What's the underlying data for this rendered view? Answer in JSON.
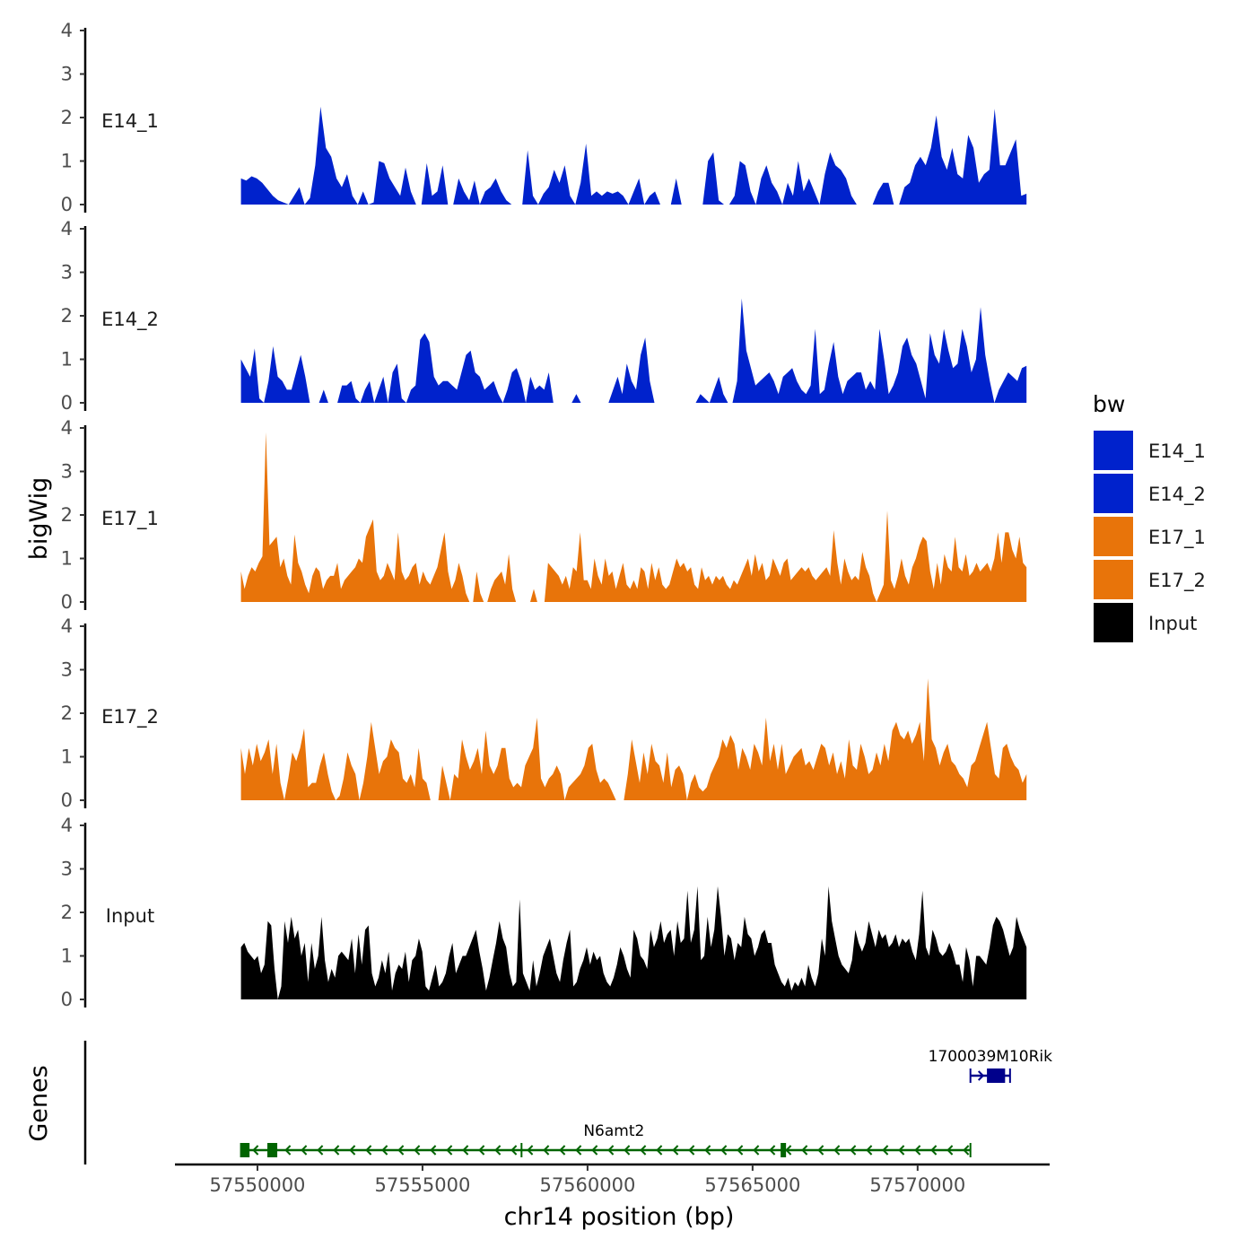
{
  "chart_data": {
    "type": "area",
    "chromosome": "chr14",
    "xlabel": "chr14 position (bp)",
    "ylabel": "bigWig",
    "xlim": [
      57547500,
      57574000
    ],
    "x_ticks": [
      57550000,
      57555000,
      57560000,
      57565000,
      57570000
    ],
    "x_tick_labels": [
      "57550000",
      "57555000",
      "57560000",
      "57565000",
      "57570000"
    ],
    "ylim": [
      0,
      4
    ],
    "y_ticks": [
      0,
      1,
      2,
      3,
      4
    ],
    "y_tick_labels": [
      "0",
      "1",
      "2",
      "3",
      "4"
    ],
    "data_range": [
      57549500,
      57573300
    ],
    "series": [
      {
        "name": "E14_1",
        "color": "#0022CC",
        "values": [
          0.6,
          0.55,
          0.65,
          0.6,
          0.5,
          0.35,
          0.2,
          0.1,
          0.05,
          0,
          0.2,
          0.4,
          0,
          0.15,
          0.9,
          2.25,
          1.3,
          1.1,
          0.6,
          0.4,
          0.7,
          0.2,
          0,
          0.3,
          0,
          0.05,
          1.0,
          0.95,
          0.6,
          0.4,
          0.2,
          0.85,
          0.3,
          0,
          0,
          0.95,
          0.2,
          0.3,
          0.9,
          0,
          0,
          0.6,
          0.3,
          0.1,
          0.55,
          0,
          0.3,
          0.4,
          0.6,
          0.3,
          0.1,
          0,
          0,
          0,
          1.25,
          0.2,
          0,
          0.25,
          0.4,
          0.8,
          0.5,
          0.9,
          0.2,
          0,
          0.5,
          1.4,
          0.2,
          0.3,
          0.2,
          0.3,
          0.25,
          0.3,
          0.2,
          0,
          0.3,
          0.6,
          0,
          0.2,
          0.3,
          0,
          0,
          0,
          0.6,
          0,
          0,
          0,
          0,
          0,
          1.0,
          1.2,
          0.1,
          0,
          0,
          0.2,
          1.0,
          0.9,
          0.3,
          0,
          0.6,
          0.9,
          0.5,
          0.3,
          0,
          0.5,
          0.2,
          1.0,
          0.3,
          0.6,
          0.3,
          0,
          0.7,
          1.2,
          0.9,
          0.8,
          0.6,
          0.2,
          0,
          0,
          0,
          0,
          0.3,
          0.5,
          0.5,
          0,
          0,
          0.4,
          0.5,
          0.9,
          1.1,
          0.9,
          1.3,
          2.05,
          1.1,
          0.8,
          1.3,
          0.7,
          0.6,
          1.6,
          1.3,
          0.5,
          0.7,
          0.8,
          2.2,
          0.9,
          0.9,
          1.2,
          1.5,
          0.2,
          0.25
        ]
      },
      {
        "name": "E14_2",
        "color": "#0022CC",
        "values": [
          1.0,
          0.8,
          0.6,
          1.25,
          0.1,
          0,
          0.5,
          1.3,
          0.6,
          0.5,
          0.3,
          0.3,
          0.7,
          1.1,
          0.6,
          0,
          0,
          0,
          0.3,
          0,
          0,
          0,
          0.4,
          0.4,
          0.5,
          0.1,
          0,
          0.3,
          0.5,
          0,
          0.3,
          0.6,
          0,
          0.7,
          0.9,
          0.1,
          0,
          0.3,
          0.4,
          1.45,
          1.6,
          1.4,
          0.6,
          0.4,
          0.5,
          0.5,
          0.4,
          0.3,
          0.7,
          1.1,
          1.2,
          0.7,
          0.6,
          0.3,
          0.4,
          0.5,
          0.2,
          0,
          0.3,
          0.7,
          0.8,
          0.5,
          0,
          0.6,
          0.3,
          0.4,
          0.3,
          0.7,
          0,
          0,
          0,
          0,
          0,
          0.2,
          0,
          0,
          0,
          0,
          0,
          0,
          0,
          0.3,
          0.6,
          0.2,
          0.9,
          0.5,
          0.3,
          1.1,
          1.5,
          0.5,
          0,
          0,
          0,
          0,
          0,
          0,
          0,
          0,
          0,
          0,
          0.2,
          0.1,
          0,
          0.3,
          0.6,
          0.2,
          0,
          0,
          0.5,
          2.4,
          1.2,
          0.8,
          0.4,
          0.5,
          0.6,
          0.7,
          0.5,
          0.2,
          0.6,
          0.7,
          0.8,
          0.5,
          0.3,
          0.2,
          0.4,
          1.7,
          0.2,
          0.3,
          0.9,
          1.4,
          0.6,
          0.2,
          0.5,
          0.6,
          0.7,
          0.7,
          0.3,
          0.5,
          0.3,
          1.7,
          1.0,
          0.2,
          0.4,
          0.7,
          1.3,
          1.5,
          1.1,
          0.9,
          0.5,
          0.1,
          1.6,
          1.1,
          0.9,
          1.7,
          1.2,
          0.8,
          0.9,
          1.7,
          1.3,
          0.7,
          1.0,
          2.2,
          1.1,
          0.5,
          0,
          0.3,
          0.5,
          0.7,
          0.6,
          0.5,
          0.8,
          0.85
        ]
      },
      {
        "name": "E17_1",
        "color": "#E8740A",
        "values": [
          0.7,
          0.3,
          0.6,
          0.8,
          0.7,
          0.9,
          1.05,
          3.9,
          1.3,
          1.4,
          1.5,
          0.8,
          1.0,
          0.6,
          0.4,
          1.55,
          0.9,
          0.7,
          0.4,
          0.2,
          0.6,
          0.8,
          0.7,
          0.3,
          0.5,
          0.6,
          0.6,
          0.9,
          0.3,
          0.5,
          0.6,
          0.7,
          0.8,
          1.0,
          0.9,
          1.5,
          1.7,
          1.9,
          0.7,
          0.5,
          0.6,
          0.9,
          0.7,
          0.5,
          1.6,
          0.7,
          0.5,
          0.6,
          0.8,
          0.9,
          0.4,
          0.7,
          0.5,
          0.4,
          0.6,
          0.8,
          1.2,
          1.6,
          0.7,
          0.3,
          0.5,
          0.9,
          0.6,
          0.2,
          0,
          0,
          0.7,
          0.2,
          0,
          0,
          0.3,
          0.5,
          0.6,
          0.7,
          0.4,
          1.1,
          0.3,
          0,
          0,
          0,
          0,
          0,
          0.3,
          0,
          0,
          0,
          0.9,
          0.8,
          0.7,
          0.6,
          0.4,
          0.6,
          0.3,
          0.8,
          0.7,
          1.6,
          0.5,
          0.5,
          0.3,
          1.0,
          0.6,
          0.4,
          1.0,
          0.6,
          0.7,
          0.3,
          0.6,
          0.9,
          0.4,
          0.3,
          0.5,
          0.3,
          0.8,
          0.7,
          0.3,
          0.9,
          0.5,
          0.8,
          0.4,
          0.3,
          0.4,
          0.7,
          1.0,
          0.8,
          0.9,
          0.7,
          0.8,
          0.4,
          0.3,
          0.8,
          0.5,
          0.6,
          0.4,
          0.6,
          0.5,
          0.6,
          0.4,
          0.3,
          0.5,
          0.4,
          0.6,
          0.8,
          1.0,
          0.6,
          1.1,
          0.7,
          0.9,
          0.5,
          0.6,
          1.0,
          0.8,
          0.6,
          0.9,
          1.0,
          0.5,
          0.6,
          0.7,
          0.8,
          0.7,
          0.8,
          0.6,
          0.5,
          0.6,
          0.7,
          0.8,
          0.6,
          1.65,
          0.9,
          0.4,
          1.0,
          0.7,
          0.5,
          0.6,
          0.5,
          1.15,
          0.8,
          0.6,
          0.2,
          0,
          0.2,
          0.4,
          2.1,
          0.5,
          0.3,
          0.6,
          1.0,
          0.6,
          0.4,
          0.8,
          1.0,
          1.3,
          1.5,
          1.4,
          0.7,
          0.3,
          0.9,
          0.4,
          1.1,
          0.8,
          0.7,
          1.5,
          0.8,
          0.7,
          1.1,
          0.6,
          0.7,
          0.9,
          0.7,
          0.8,
          0.9,
          0.7,
          1.0,
          1.6,
          0.9,
          1.6,
          1.6,
          1.2,
          1.0,
          1.5,
          0.9,
          0.8
        ]
      },
      {
        "name": "E17_2",
        "color": "#E8740A",
        "values": [
          1.2,
          0.6,
          1.2,
          0.8,
          1.3,
          0.9,
          1.1,
          1.4,
          0.6,
          1.3,
          0.4,
          0,
          0.5,
          1.1,
          0.9,
          1.2,
          1.65,
          0.3,
          0.4,
          0.4,
          0.8,
          1.1,
          0.6,
          0.2,
          0,
          0.1,
          0.5,
          1.1,
          0.8,
          0.6,
          0,
          0.4,
          1.0,
          1.8,
          1.2,
          0.6,
          0.9,
          1.0,
          1.4,
          1.2,
          1.1,
          0.5,
          0.4,
          0.6,
          0.3,
          1.2,
          0.5,
          0.4,
          0,
          0,
          0,
          0.8,
          0.4,
          0,
          0.6,
          0.5,
          1.4,
          1.0,
          0.7,
          0.9,
          1.2,
          0.6,
          1.6,
          0.8,
          0.6,
          0.8,
          1.2,
          1.2,
          0.5,
          0.3,
          0.4,
          0.3,
          0.8,
          1.0,
          1.2,
          1.9,
          0.5,
          0.3,
          0.5,
          0.6,
          0.8,
          0.6,
          0,
          0.3,
          0.4,
          0.5,
          0.6,
          0.8,
          1.2,
          1.3,
          0.7,
          0.4,
          0.5,
          0.4,
          0.2,
          0,
          0,
          0,
          0.6,
          1.4,
          0.9,
          0.4,
          1.1,
          0.6,
          1.3,
          0.9,
          0.8,
          0.4,
          1.1,
          0.3,
          0.7,
          0.8,
          0.6,
          0,
          0.4,
          0.6,
          0.3,
          0.2,
          0.3,
          0.6,
          0.8,
          1.0,
          1.4,
          1.2,
          1.5,
          1.3,
          0.7,
          1.2,
          1.0,
          0.7,
          1.3,
          1.1,
          0.8,
          1.9,
          0.9,
          1.3,
          0.7,
          1.3,
          0.6,
          0.8,
          1.0,
          1.1,
          1.2,
          0.8,
          0.9,
          0.7,
          1.0,
          1.3,
          1.2,
          0.8,
          1.1,
          0.6,
          0.9,
          0.5,
          1.4,
          0.8,
          0.7,
          1.3,
          1.0,
          0.6,
          0.7,
          1.1,
          0.8,
          1.3,
          0.9,
          1.6,
          1.8,
          1.5,
          1.4,
          1.6,
          1.3,
          1.5,
          1.8,
          0.9,
          2.8,
          1.4,
          1.2,
          0.8,
          1.1,
          1.3,
          0.9,
          0.8,
          0.6,
          0.5,
          0.3,
          0.8,
          0.9,
          1.2,
          1.5,
          1.8,
          1.2,
          0.6,
          0.5,
          1.2,
          1.3,
          1.0,
          0.8,
          0.7,
          0.4,
          0.6
        ]
      },
      {
        "name": "Input",
        "color": "#000000",
        "values": [
          1.2,
          1.3,
          1.1,
          1.0,
          0.9,
          1.0,
          0.6,
          0.8,
          1.8,
          1.7,
          0.7,
          0,
          0.3,
          1.8,
          1.3,
          1.9,
          1.4,
          1.6,
          1.0,
          1.3,
          0.4,
          1.3,
          0.7,
          1.0,
          1.9,
          0.9,
          0.4,
          0.7,
          0.5,
          1.0,
          1.1,
          1.0,
          0.9,
          1.4,
          0.6,
          1.5,
          0.8,
          1.6,
          1.7,
          0.6,
          0.3,
          0.5,
          0.9,
          0.6,
          1.1,
          0.2,
          0.6,
          0.8,
          0.7,
          1.1,
          0.4,
          0.9,
          1.0,
          1.4,
          1.1,
          0.3,
          0.2,
          0.5,
          0.8,
          0.3,
          0.4,
          0.6,
          1.0,
          1.3,
          0.6,
          0.8,
          1.0,
          1.0,
          1.2,
          1.4,
          1.6,
          1.1,
          0.7,
          0.2,
          0.5,
          0.9,
          1.3,
          1.8,
          1.4,
          1.2,
          0.6,
          0.3,
          0.4,
          2.3,
          0.6,
          0.4,
          0.2,
          0.9,
          0.3,
          0.6,
          1.0,
          1.2,
          1.4,
          1.0,
          0.6,
          0.4,
          0.9,
          1.3,
          1.6,
          0.3,
          0.4,
          0.7,
          0.9,
          1.2,
          0.8,
          1.1,
          0.9,
          1.0,
          0.6,
          0.4,
          0.3,
          0.5,
          0.8,
          1.2,
          1.0,
          0.7,
          0.5,
          1.6,
          1.4,
          1.0,
          0.9,
          0.7,
          1.6,
          1.2,
          1.4,
          1.8,
          1.3,
          1.5,
          1.6,
          1.0,
          1.8,
          1.3,
          1.4,
          2.5,
          1.3,
          1.6,
          2.6,
          0.9,
          1.0,
          1.9,
          1.2,
          1.6,
          2.6,
          1.9,
          1.0,
          1.5,
          1.4,
          0.9,
          1.3,
          1.2,
          1.9,
          1.5,
          1.4,
          1.0,
          1.2,
          1.5,
          1.6,
          1.3,
          1.3,
          0.8,
          0.6,
          0.4,
          0.3,
          0.5,
          0.2,
          0.4,
          0.3,
          0.5,
          0.3,
          0.8,
          0.5,
          0.3,
          0.6,
          1.4,
          1.0,
          2.6,
          1.8,
          1.4,
          1.0,
          0.8,
          0.7,
          0.6,
          0.9,
          1.6,
          1.3,
          1.1,
          1.3,
          1.8,
          1.5,
          1.2,
          1.6,
          1.4,
          1.5,
          1.2,
          1.3,
          1.5,
          1.2,
          1.4,
          1.3,
          1.4,
          1.1,
          0.9,
          1.5,
          2.5,
          1.2,
          1.0,
          1.6,
          1.4,
          1.1,
          1.0,
          1.1,
          1.3,
          1.1,
          0.8,
          0.8,
          0.4,
          1.2,
          0.9,
          0.3,
          1.0,
          1.0,
          0.9,
          0.8,
          1.2,
          1.7,
          1.9,
          1.8,
          1.6,
          1.3,
          1.0,
          1.2,
          1.9,
          1.6,
          1.4,
          1.2
        ]
      }
    ],
    "genes": [
      {
        "name": "N6amt2",
        "strand": "-",
        "color": "#006400",
        "start": 57549500,
        "end": 57571600,
        "exons": [
          [
            57549500,
            57549760
          ],
          [
            57550300,
            57550600
          ],
          [
            57565850,
            57566000
          ]
        ],
        "introns_marks": [
          57558000
        ]
      },
      {
        "name": "1700039M10Rik",
        "strand": "+",
        "color": "#00008B",
        "start": 57571600,
        "end": 57572800,
        "exons": [
          [
            57572100,
            57572650
          ]
        ]
      }
    ],
    "gene_track_label": "Genes",
    "legend": {
      "title": "bw",
      "placement": "right",
      "entries": [
        {
          "label": "E14_1",
          "color": "#0022CC"
        },
        {
          "label": "E14_2",
          "color": "#0022CC"
        },
        {
          "label": "E17_1",
          "color": "#E8740A"
        },
        {
          "label": "E17_2",
          "color": "#E8740A"
        },
        {
          "label": "Input",
          "color": "#000000"
        }
      ]
    }
  }
}
